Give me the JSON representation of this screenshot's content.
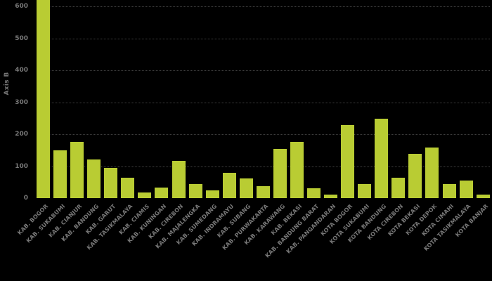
{
  "chart_data": {
    "type": "bar",
    "title": "",
    "xlabel": "",
    "ylabel": "Axis B",
    "categories": [
      "KAB. BOGOR",
      "KAB. SUKABUMI",
      "KAB. CIANJUR",
      "KAB. BANDUNG",
      "KAB. GARUT",
      "KAB. TASIKMALAYA",
      "KAB. CIAMIS",
      "KAB. KUNINGAN",
      "KAB. CIREBON",
      "KAB. MAJALENGKA",
      "KAB. SUMEDANG",
      "KAB. INDRAMAYU",
      "KAB. SUBANG",
      "KAB. PURWAKARTA",
      "KAB. KARAWANG",
      "KAB. BEKASI",
      "KAB. BANDUNG BARAT",
      "KAB. PANGANDARAN",
      "KOTA BOGOR",
      "KOTA SUKABUMI",
      "KOTA BANDUNG",
      "KOTA CIREBON",
      "KOTA BEKASI",
      "KOTA DEPOK",
      "KOTA CIMAHI",
      "KOTA TASIKMALAYA",
      "KOTA BANJAR"
    ],
    "values": [
      620,
      150,
      175,
      121,
      94,
      64,
      18,
      32,
      116,
      43,
      24,
      79,
      61,
      37,
      153,
      175,
      31,
      10,
      228,
      45,
      248,
      64,
      138,
      158,
      43,
      54,
      11
    ],
    "yticks": [
      0,
      100,
      200,
      300,
      400,
      500,
      600
    ],
    "ylim": [
      0,
      620
    ],
    "first_bar_clipped_at_top": true,
    "legend": null,
    "grid": {
      "horizontal": true,
      "style": "dotted"
    },
    "colors": {
      "background": "#000000",
      "bar": "#b9cc33",
      "axis_text": "#787878",
      "gridline": "#3e3e3e"
    }
  }
}
